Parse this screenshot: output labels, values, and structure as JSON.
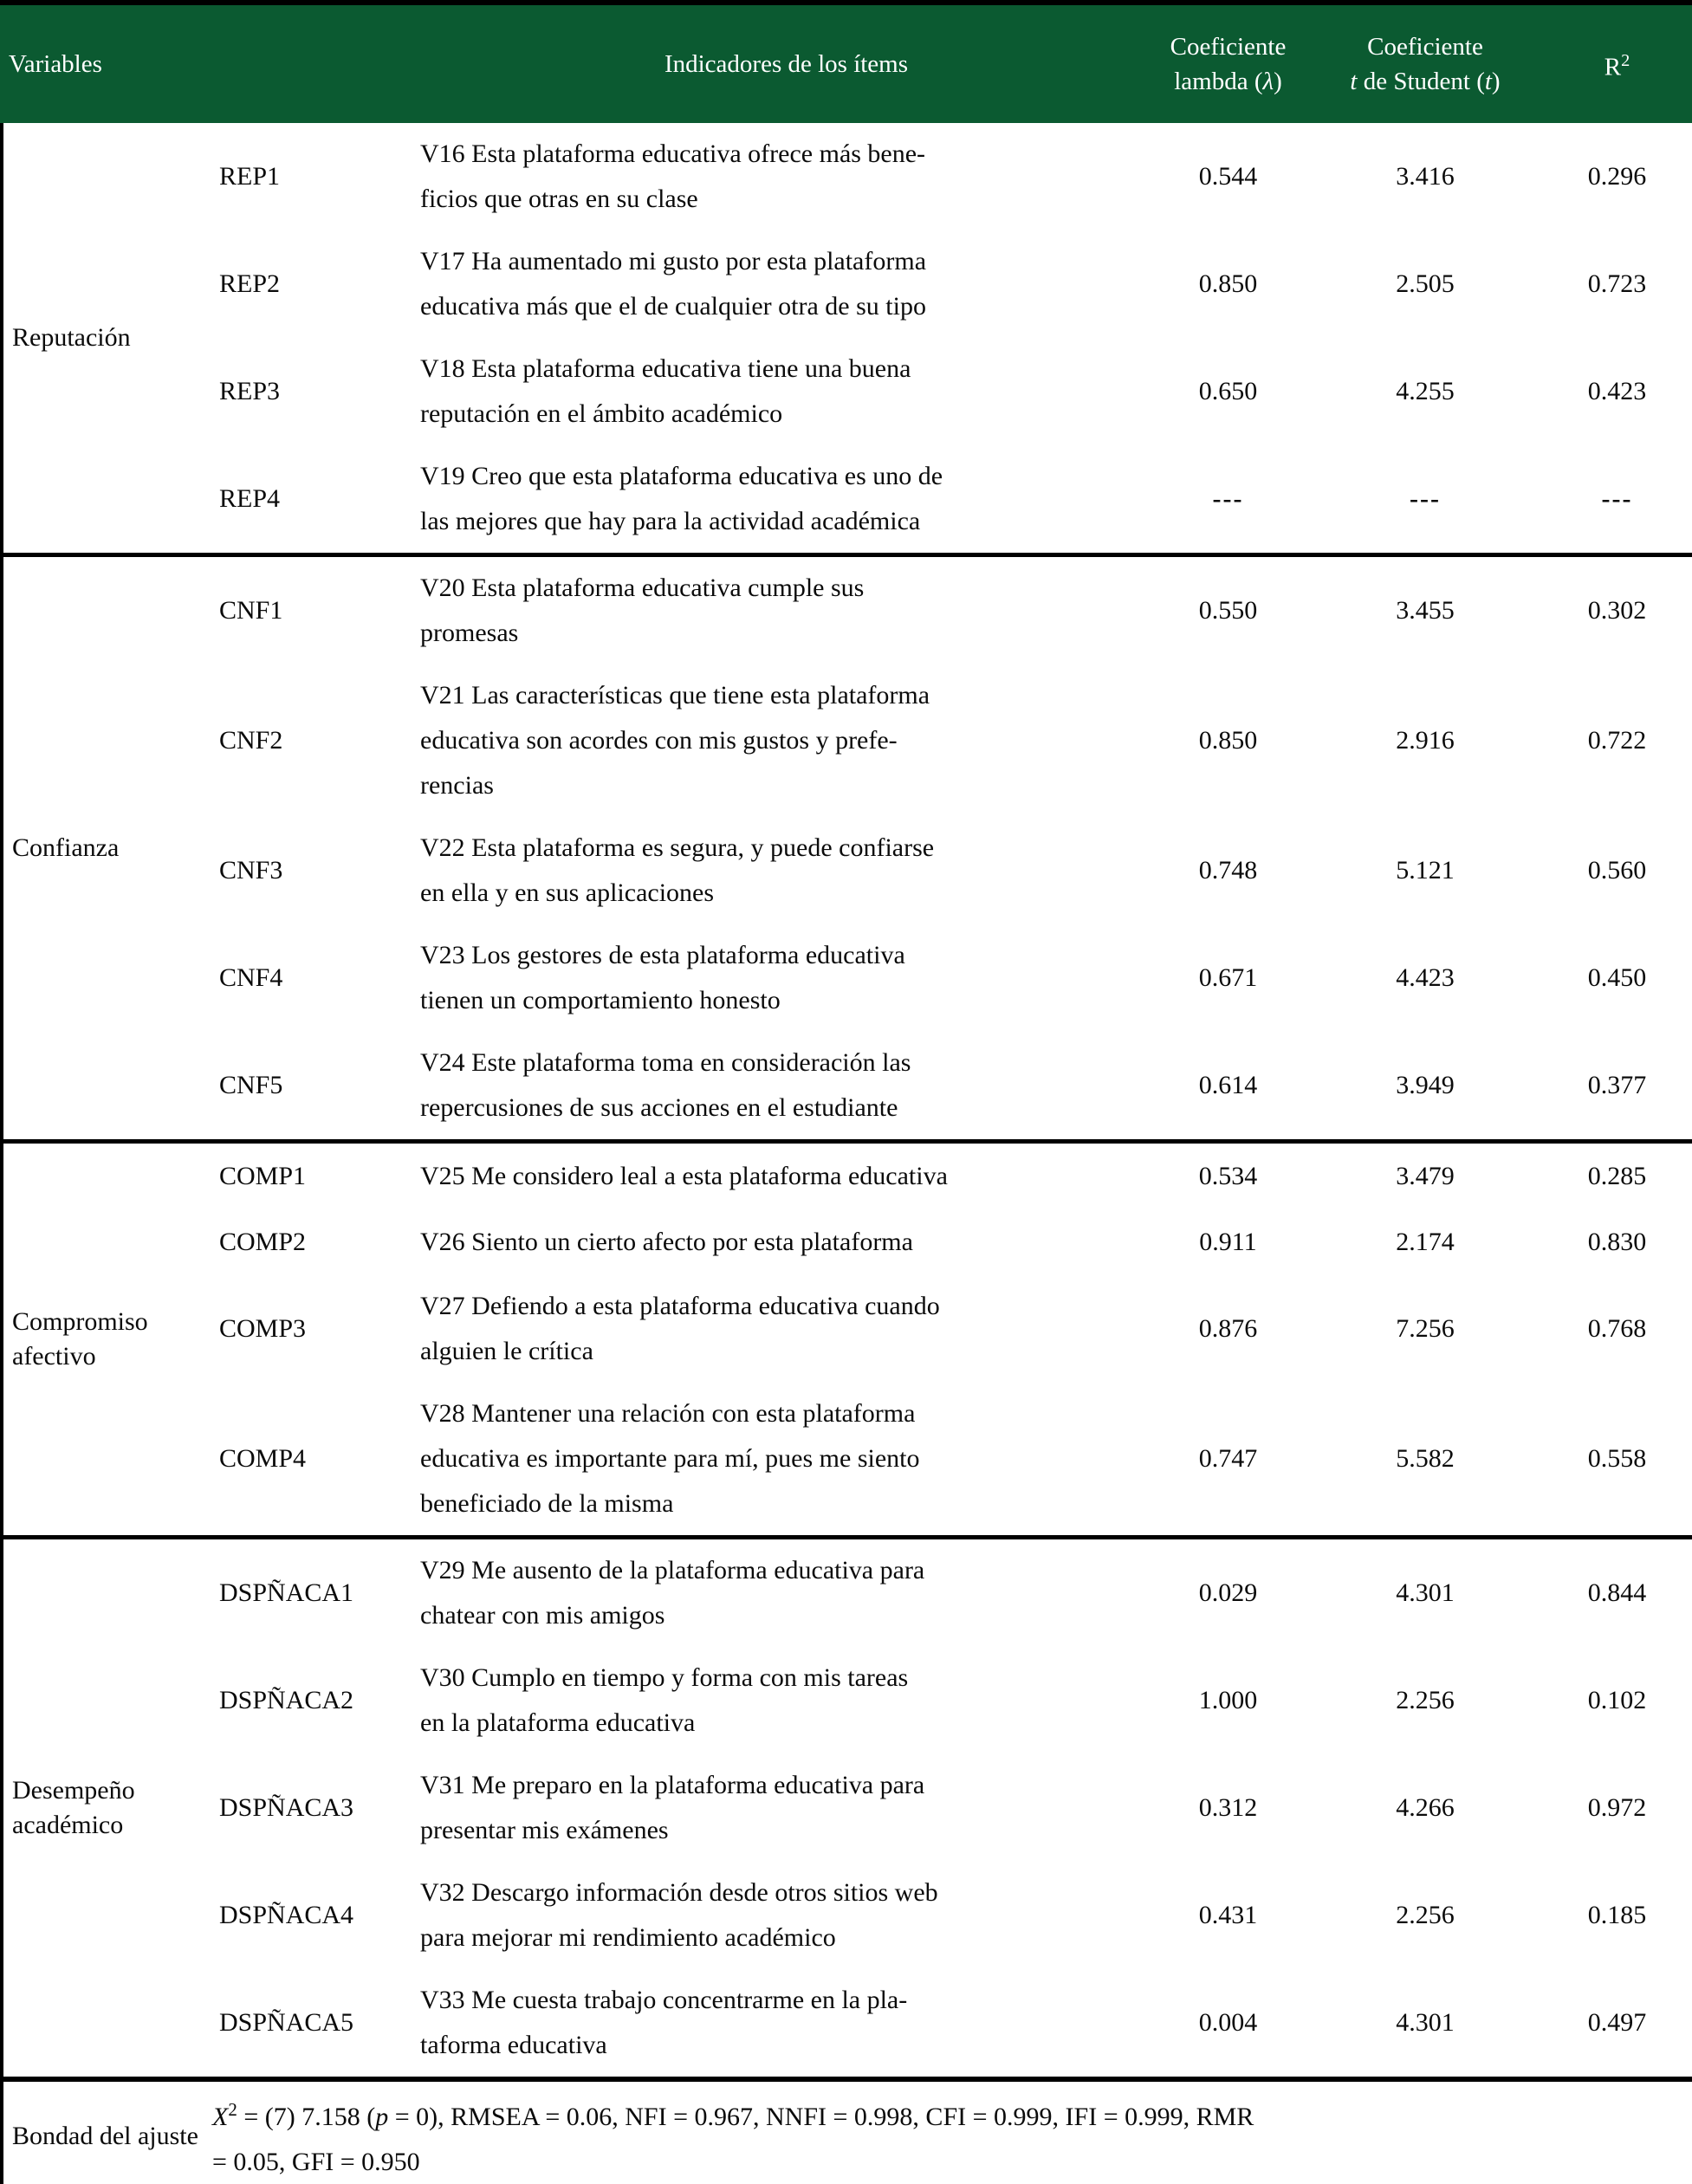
{
  "colors": {
    "header_bg": "#0b5a31",
    "header_text": "#ffffff",
    "body_text": "#0b0b0b",
    "border": "#000000"
  },
  "header": {
    "col_variables": "Variables",
    "col_indicators": "Indicadores de los ítems",
    "col_lambda_line1": "Coeficiente",
    "col_lambda_line2a": "lambda (",
    "col_lambda_symbol": "λ",
    "col_lambda_line2b": ")",
    "col_t_line1": "Coeficiente",
    "col_t_italic1": "t",
    "col_t_line2a": " de Student (",
    "col_t_italic2": "t",
    "col_t_line2b": ")",
    "col_r2_base": "R",
    "col_r2_sup": "2"
  },
  "sections": [
    {
      "variable": "Reputación",
      "rows": [
        {
          "code": "REP1",
          "text": "V16 Esta plataforma educativa ofrece más bene-\nficios que otras en su clase",
          "lambda": "0.544",
          "t": "3.416",
          "r2": "0.296"
        },
        {
          "code": "REP2",
          "text": "V17 Ha aumentado mi gusto por esta plataforma\neducativa más que el de cualquier otra de su tipo",
          "lambda": "0.850",
          "t": "2.505",
          "r2": "0.723"
        },
        {
          "code": "REP3",
          "text": "V18 Esta plataforma educativa tiene una buena\nreputación en el ámbito académico",
          "lambda": "0.650",
          "t": "4.255",
          "r2": "0.423"
        },
        {
          "code": "REP4",
          "text": "V19 Creo que esta plataforma educativa es uno de\nlas mejores que hay para la actividad académica",
          "lambda": "---",
          "t": "---",
          "r2": "---"
        }
      ]
    },
    {
      "variable": "Confianza",
      "rows": [
        {
          "code": "CNF1",
          "text": "V20 Esta plataforma educativa cumple sus\npromesas",
          "lambda": "0.550",
          "t": "3.455",
          "r2": "0.302"
        },
        {
          "code": "CNF2",
          "text": "V21 Las características que tiene esta plataforma\neducativa son acordes con mis gustos y prefe-\nrencias",
          "lambda": "0.850",
          "t": "2.916",
          "r2": "0.722"
        },
        {
          "code": "CNF3",
          "text": "V22 Esta plataforma es segura, y puede confiarse\nen ella y en sus aplicaciones",
          "lambda": "0.748",
          "t": "5.121",
          "r2": "0.560"
        },
        {
          "code": "CNF4",
          "text": "V23 Los gestores de esta plataforma educativa\ntienen un comportamiento honesto",
          "lambda": "0.671",
          "t": "4.423",
          "r2": "0.450"
        },
        {
          "code": "CNF5",
          "text": "V24 Este plataforma toma en consideración las\nrepercusiones de sus acciones en el estudiante",
          "lambda": "0.614",
          "t": "3.949",
          "r2": "0.377"
        }
      ]
    },
    {
      "variable": "Compromiso afectivo",
      "rows": [
        {
          "code": "COMP1",
          "text": "V25 Me considero leal a esta plataforma educativa",
          "lambda": "0.534",
          "t": "3.479",
          "r2": "0.285"
        },
        {
          "code": "COMP2",
          "text": "V26 Siento un cierto afecto por esta plataforma",
          "lambda": "0.911",
          "t": "2.174",
          "r2": "0.830"
        },
        {
          "code": "COMP3",
          "text": "V27 Defiendo a esta plataforma educativa cuando\nalguien le crítica",
          "lambda": "0.876",
          "t": "7.256",
          "r2": "0.768"
        },
        {
          "code": "COMP4",
          "text": "V28 Mantener una relación con esta plataforma\neducativa es importante para mí, pues me siento\nbeneficiado de la misma",
          "lambda": "0.747",
          "t": "5.582",
          "r2": "0.558"
        }
      ]
    },
    {
      "variable": "Desempeño académico",
      "rows": [
        {
          "code": "DSPÑACA1",
          "text": "V29 Me ausento de la plataforma educativa para\nchatear con mis amigos",
          "lambda": "0.029",
          "t": "4.301",
          "r2": "0.844"
        },
        {
          "code": "DSPÑACA2",
          "text": "V30 Cumplo en tiempo y forma con mis tareas\nen la plataforma educativa",
          "lambda": "1.000",
          "t": "2.256",
          "r2": "0.102"
        },
        {
          "code": "DSPÑACA3",
          "text": "V31 Me preparo en la plataforma educativa para\npresentar mis exámenes",
          "lambda": "0.312",
          "t": "4.266",
          "r2": "0.972"
        },
        {
          "code": "DSPÑACA4",
          "text": "V32 Descargo información desde otros sitios web\npara mejorar mi rendimiento académico",
          "lambda": "0.431",
          "t": "2.256",
          "r2": "0.185"
        },
        {
          "code": "DSPÑACA5",
          "text": "V33 Me cuesta trabajo concentrarme en la pla-\ntaforma educativa",
          "lambda": "0.004",
          "t": "4.301",
          "r2": "0.497"
        }
      ]
    }
  ],
  "footer": {
    "variable": "Bondad del ajuste",
    "chi_base": "X",
    "chi_sup": "2",
    "part1": " = (7) 7.158 (",
    "p_label": "p",
    "part2": " = 0), RMSEA = 0.06, NFI = 0.967, NNFI = 0.998, CFI = 0.999, IFI = 0.999, RMR\n= 0.05, GFI = 0.950"
  }
}
